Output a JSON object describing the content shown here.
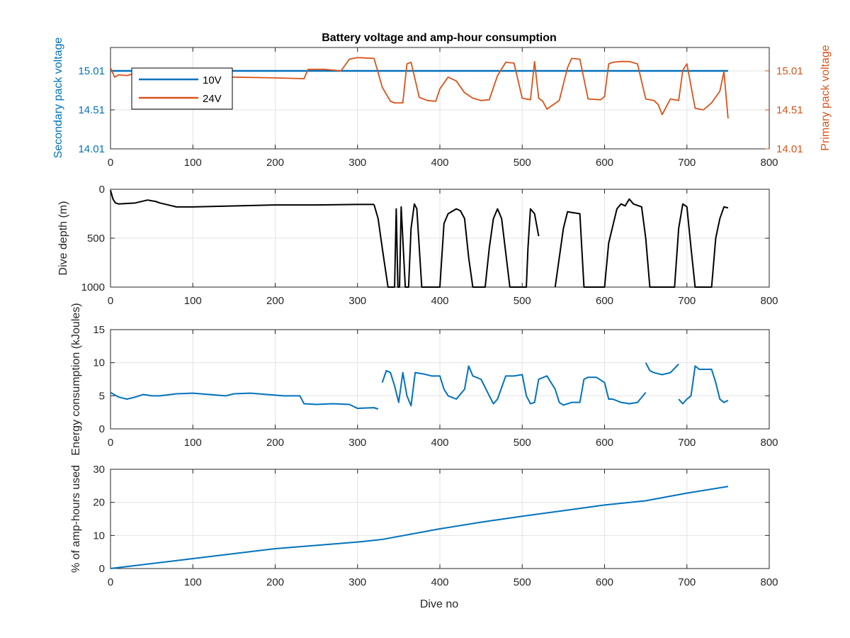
{
  "figure": {
    "title": "Battery voltage and amp-hour consumption",
    "xlabel": "Dive no"
  },
  "chart_data": [
    {
      "type": "line",
      "title": "Battery voltage and amp-hour consumption",
      "xlabel": "",
      "ylabel_left": "Secondary pack voltage",
      "ylabel_right": "Primary pack voltage",
      "xlim": [
        0,
        800
      ],
      "ylim": [
        14.01,
        15.31
      ],
      "xticks": [
        0,
        100,
        200,
        300,
        400,
        500,
        600,
        700,
        800
      ],
      "yticks_left": [
        "14.01",
        "14.51",
        "15.01"
      ],
      "yticks_right": [
        "14.01",
        "14.51",
        "15.01"
      ],
      "grid": true,
      "legend": "top-left",
      "colors": {
        "10V": "#0072BD",
        "24V": "#D95319"
      },
      "series": [
        {
          "name": "10V",
          "axis": "left",
          "x": [
            0,
            750
          ],
          "y": [
            15.01,
            15.01
          ]
        },
        {
          "name": "24V",
          "axis": "right",
          "x": [
            0,
            5,
            10,
            20,
            30,
            45,
            60,
            100,
            150,
            200,
            235,
            240,
            260,
            280,
            290,
            300,
            320,
            325,
            330,
            340,
            345,
            355,
            360,
            365,
            375,
            385,
            395,
            400,
            410,
            420,
            430,
            440,
            450,
            460,
            470,
            480,
            490,
            500,
            510,
            515,
            520,
            525,
            530,
            545,
            555,
            560,
            570,
            580,
            595,
            600,
            605,
            610,
            620,
            630,
            640,
            650,
            660,
            665,
            670,
            680,
            690,
            695,
            700,
            710,
            720,
            730,
            740,
            745,
            750
          ],
          "y": [
            15.05,
            14.93,
            14.96,
            14.95,
            14.98,
            14.98,
            14.96,
            14.94,
            14.93,
            14.92,
            14.91,
            15.03,
            15.03,
            15.01,
            15.16,
            15.18,
            15.17,
            14.99,
            14.8,
            14.62,
            14.6,
            14.6,
            15.1,
            15.12,
            14.67,
            14.63,
            14.62,
            14.78,
            14.93,
            14.88,
            14.73,
            14.66,
            14.63,
            14.64,
            14.95,
            15.12,
            15.11,
            14.66,
            14.64,
            15.13,
            14.66,
            14.62,
            14.52,
            14.63,
            15.05,
            15.17,
            15.16,
            14.65,
            14.64,
            14.68,
            15.1,
            15.12,
            15.13,
            15.13,
            15.1,
            14.65,
            14.63,
            14.58,
            14.45,
            14.65,
            14.63,
            15.02,
            15.1,
            14.53,
            14.51,
            14.6,
            14.75,
            15.0,
            14.4
          ]
        }
      ]
    },
    {
      "type": "line",
      "title": "",
      "xlabel": "",
      "ylabel": "Dive depth (m)",
      "xlim": [
        0,
        800
      ],
      "ylim": [
        0,
        1000
      ],
      "y_reversed": true,
      "xticks": [
        0,
        100,
        200,
        300,
        400,
        500,
        600,
        700,
        800
      ],
      "yticks": [
        "0",
        "500",
        "1000"
      ],
      "grid": true,
      "colors": {
        "depth": "#000000"
      },
      "segments": [
        {
          "x": [
            0,
            3,
            6,
            10,
            20,
            30,
            40,
            45,
            55,
            60,
            70,
            80,
            100,
            150,
            200,
            250,
            300,
            320
          ],
          "y": [
            10,
            100,
            140,
            150,
            145,
            140,
            120,
            110,
            125,
            140,
            160,
            180,
            180,
            170,
            160,
            160,
            155,
            155
          ]
        },
        {
          "x": [
            320,
            325,
            330,
            337,
            345,
            347,
            349,
            351,
            353,
            358,
            360,
            362,
            365,
            369,
            372,
            378,
            385,
            395,
            400,
            405,
            410,
            420,
            425,
            430,
            435,
            440,
            455,
            460,
            465,
            470,
            475,
            485,
            490,
            505,
            507,
            510,
            515,
            520
          ],
          "y": [
            155,
            300,
            600,
            1000,
            1000,
            200,
            1000,
            1000,
            180,
            1000,
            1000,
            1000,
            400,
            150,
            200,
            1000,
            1000,
            1000,
            1000,
            350,
            250,
            200,
            220,
            300,
            700,
            1000,
            1000,
            600,
            300,
            200,
            300,
            1000,
            1000,
            1000,
            600,
            200,
            250,
            480
          ]
        },
        {
          "x": [
            540,
            550,
            555,
            570,
            575,
            595,
            600,
            605,
            615,
            620,
            625,
            630,
            635,
            645,
            650,
            655,
            685,
            690,
            695,
            700,
            705,
            710,
            715,
            730,
            735,
            740,
            745,
            750
          ],
          "y": [
            1000,
            400,
            230,
            250,
            1000,
            1000,
            1000,
            550,
            200,
            150,
            170,
            100,
            150,
            180,
            500,
            1000,
            1000,
            400,
            150,
            180,
            600,
            1000,
            1000,
            1000,
            500,
            300,
            180,
            190
          ]
        }
      ]
    },
    {
      "type": "line",
      "title": "",
      "xlabel": "",
      "ylabel": "Energy consumption (kJoules)",
      "xlim": [
        0,
        800
      ],
      "ylim": [
        0,
        15
      ],
      "xticks": [
        0,
        100,
        200,
        300,
        400,
        500,
        600,
        700,
        800
      ],
      "yticks": [
        "0",
        "5",
        "10",
        "15"
      ],
      "grid": true,
      "colors": {
        "energy": "#0072BD"
      },
      "segments": [
        {
          "x": [
            0,
            10,
            20,
            30,
            40,
            50,
            60,
            80,
            100,
            120,
            140,
            150
          ],
          "y": [
            5.5,
            4.8,
            4.5,
            4.8,
            5.2,
            5.0,
            5.0,
            5.3,
            5.4,
            5.2,
            5.0,
            5.3
          ]
        },
        {
          "x": [
            150,
            170,
            190,
            210,
            230,
            235,
            250,
            270,
            290,
            300,
            320,
            325
          ],
          "y": [
            5.3,
            5.4,
            5.2,
            5.0,
            5.0,
            3.8,
            3.7,
            3.8,
            3.7,
            3.1,
            3.2,
            3.0
          ]
        },
        {
          "x": [
            330,
            335,
            340,
            345,
            350,
            355,
            360,
            365,
            370,
            380,
            390,
            400,
            405,
            410,
            420,
            430,
            435,
            440,
            450,
            460,
            465,
            470,
            480,
            490,
            500,
            505,
            510,
            515,
            520,
            530,
            540,
            545,
            550,
            560,
            570,
            575,
            580,
            590,
            600,
            605,
            610,
            620,
            630,
            640,
            650
          ],
          "y": [
            7.0,
            8.8,
            8.5,
            6.5,
            4.0,
            8.5,
            5.0,
            3.5,
            8.5,
            8.3,
            8.0,
            8.0,
            6.0,
            5.0,
            4.5,
            6.0,
            9.5,
            8.0,
            7.5,
            5.0,
            3.8,
            4.5,
            8.0,
            8.0,
            8.2,
            5.0,
            3.8,
            4.0,
            7.5,
            8.0,
            6.0,
            4.0,
            3.6,
            4.0,
            4.0,
            7.5,
            7.8,
            7.8,
            7.0,
            4.5,
            4.5,
            4.0,
            3.8,
            4.0,
            5.5
          ]
        },
        {
          "x": [
            650,
            655,
            660,
            670,
            680,
            690
          ],
          "y": [
            10.0,
            8.8,
            8.5,
            8.2,
            8.5,
            9.8
          ]
        },
        {
          "x": [
            690,
            695,
            700,
            705,
            710,
            715,
            720,
            730,
            735,
            740,
            745,
            750
          ],
          "y": [
            4.5,
            3.8,
            4.5,
            5.0,
            9.5,
            9.0,
            9.0,
            9.0,
            7.0,
            4.5,
            4.0,
            4.3
          ]
        }
      ]
    },
    {
      "type": "line",
      "title": "",
      "xlabel": "Dive no",
      "ylabel": "% of amp-hours used",
      "xlim": [
        0,
        800
      ],
      "ylim": [
        0,
        30
      ],
      "xticks": [
        0,
        100,
        200,
        300,
        400,
        500,
        600,
        700,
        800
      ],
      "yticks": [
        "0",
        "10",
        "20",
        "30"
      ],
      "grid": true,
      "colors": {
        "amphours": "#0072BD"
      },
      "segments": [
        {
          "x": [
            0,
            100,
            200,
            300,
            330,
            400,
            450,
            500,
            550,
            600,
            650,
            700,
            750
          ],
          "y": [
            0,
            3.0,
            6.0,
            8.0,
            8.8,
            12.0,
            14.0,
            15.8,
            17.5,
            19.2,
            20.5,
            22.8,
            24.8
          ]
        }
      ]
    }
  ]
}
